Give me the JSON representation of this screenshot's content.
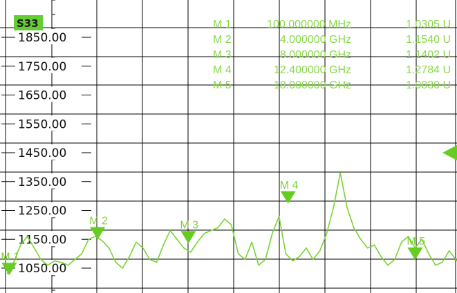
{
  "trace_badge": "S33",
  "colors": {
    "trace": "#78d431",
    "marker": "#66cc22",
    "marker_text": "#8ad84a",
    "grid": "#000000",
    "background": "#ffffff",
    "badge": "#66cc33"
  },
  "marker_table": [
    {
      "id": "M 1",
      "freq": "100.000000 MHz",
      "value": "1.0305 U"
    },
    {
      "id": "M 2",
      "freq": "4.000000 GHz",
      "value": "1.1540 U"
    },
    {
      "id": "M 3",
      "freq": "8.000000 GHz",
      "value": "1.1402 U"
    },
    {
      "id": "M 4",
      "freq": "12.400000 GHz",
      "value": "1.2784 U"
    },
    {
      "id": "M 5",
      "freq": "18.000000 GHz",
      "value": "1.0830 U"
    }
  ],
  "chart_data": {
    "type": "line",
    "title": "",
    "xlabel": "",
    "ylabel": "",
    "ytick_labels": [
      "1850.00",
      "1750.00",
      "1650.00",
      "1550.00",
      "1450.00",
      "1350.00",
      "1250.00",
      "1150.00",
      "1050.00"
    ],
    "ylim": [
      1000,
      1950
    ],
    "xlim": [
      0,
      20
    ],
    "grid": true,
    "reference_arrow_value": 1450,
    "series": [
      {
        "x": [
          0.0,
          0.3,
          0.6,
          0.9,
          1.2,
          1.5,
          1.8,
          2.1,
          2.4,
          2.7,
          3.0,
          3.3,
          3.6,
          3.9,
          4.2,
          4.5,
          4.8,
          5.1,
          5.4,
          5.7,
          6.0,
          6.3,
          6.6,
          6.9,
          7.2,
          7.5,
          7.8,
          8.1,
          8.4,
          8.7,
          9.0,
          9.3,
          9.6,
          9.9,
          10.2,
          10.5,
          10.8,
          11.1,
          11.4,
          11.7,
          12.0,
          12.3,
          12.6,
          12.9,
          13.2,
          13.5,
          13.8,
          14.1,
          14.4,
          14.7,
          15.0,
          15.3,
          15.6,
          15.9,
          16.2,
          16.5,
          16.8,
          17.1,
          17.4,
          17.7,
          18.0,
          18.3,
          18.6,
          18.9,
          19.2,
          19.5,
          19.8,
          20.0
        ],
        "values": [
          1030,
          1070,
          1130,
          1160,
          1120,
          1080,
          1060,
          1075,
          1070,
          1060,
          1080,
          1100,
          1150,
          1160,
          1145,
          1120,
          1070,
          1050,
          1090,
          1140,
          1120,
          1080,
          1070,
          1130,
          1180,
          1150,
          1120,
          1105,
          1140,
          1170,
          1180,
          1190,
          1220,
          1200,
          1100,
          1080,
          1140,
          1060,
          1080,
          1170,
          1230,
          1100,
          1075,
          1090,
          1120,
          1080,
          1110,
          1170,
          1260,
          1380,
          1260,
          1190,
          1150,
          1120,
          1130,
          1090,
          1060,
          1080,
          1140,
          1160,
          1120,
          1150,
          1100,
          1060,
          1070,
          1110,
          1080,
          1060
        ]
      }
    ],
    "markers": [
      {
        "label": "M 1",
        "x": 0.1,
        "y": 1030
      },
      {
        "label": "M 2",
        "x": 4.0,
        "y": 1154
      },
      {
        "label": "M 3",
        "x": 8.0,
        "y": 1140
      },
      {
        "label": "M 4",
        "x": 12.4,
        "y": 1278
      },
      {
        "label": "M 5",
        "x": 18.0,
        "y": 1083
      }
    ]
  }
}
